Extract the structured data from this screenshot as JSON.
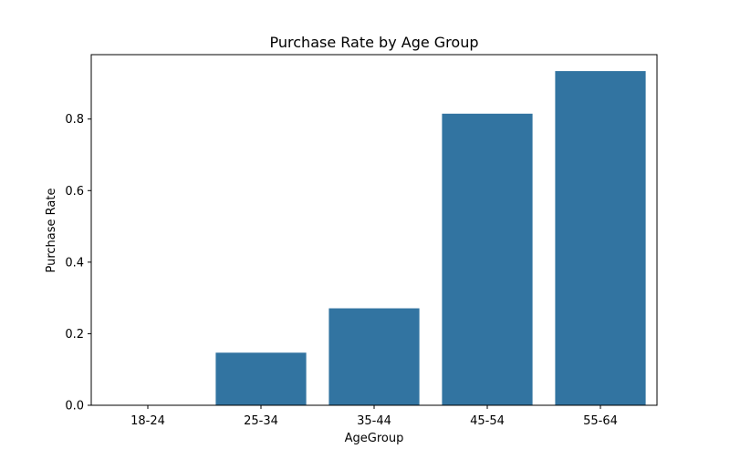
{
  "chart_data": {
    "type": "bar",
    "title": "Purchase Rate by Age Group",
    "xlabel": "AgeGroup",
    "ylabel": "Purchase Rate",
    "categories": [
      "18-24",
      "25-34",
      "35-44",
      "45-54",
      "55-64"
    ],
    "values": [
      0.0,
      0.147,
      0.271,
      0.815,
      0.934
    ],
    "ylim": [
      0,
      0.98
    ],
    "yticks": [
      "0.0",
      "0.2",
      "0.4",
      "0.6",
      "0.8"
    ],
    "grid": false,
    "legend": "none",
    "bar_color": "#3274a1"
  }
}
